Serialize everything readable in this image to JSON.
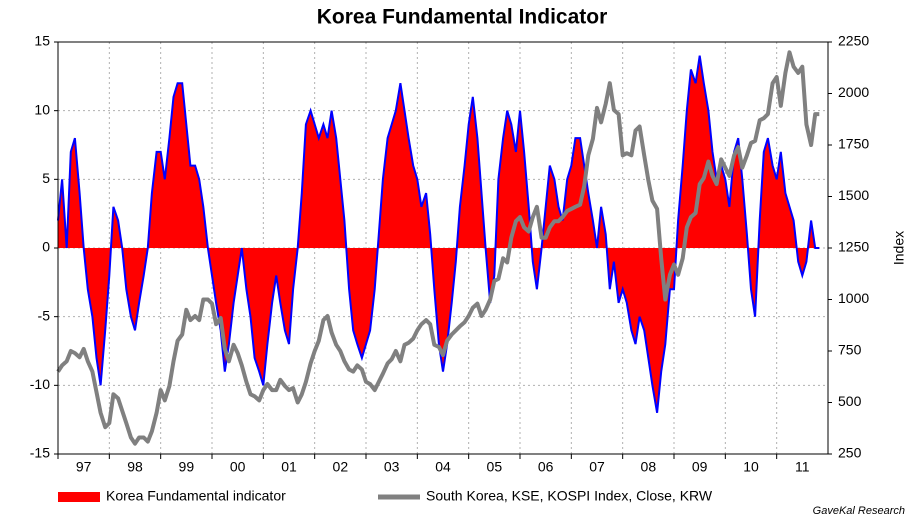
{
  "chart_data": {
    "type": "line",
    "title": "Korea Fundamental Indicator",
    "y2_label": "Index",
    "source": "GaveKal Research",
    "x": [
      1997,
      1997.08,
      1997.17,
      1997.25,
      1997.33,
      1997.42,
      1997.5,
      1997.58,
      1997.67,
      1997.75,
      1997.83,
      1997.92,
      1998,
      1998.08,
      1998.17,
      1998.25,
      1998.33,
      1998.42,
      1998.5,
      1998.58,
      1998.67,
      1998.75,
      1998.83,
      1998.92,
      1999,
      1999.08,
      1999.17,
      1999.25,
      1999.33,
      1999.42,
      1999.5,
      1999.58,
      1999.67,
      1999.75,
      1999.83,
      1999.92,
      2000,
      2000.08,
      2000.17,
      2000.25,
      2000.33,
      2000.42,
      2000.5,
      2000.58,
      2000.67,
      2000.75,
      2000.83,
      2000.92,
      2001,
      2001.08,
      2001.17,
      2001.25,
      2001.33,
      2001.42,
      2001.5,
      2001.58,
      2001.67,
      2001.75,
      2001.83,
      2001.92,
      2002,
      2002.08,
      2002.17,
      2002.25,
      2002.33,
      2002.42,
      2002.5,
      2002.58,
      2002.67,
      2002.75,
      2002.83,
      2002.92,
      2003,
      2003.08,
      2003.17,
      2003.25,
      2003.33,
      2003.42,
      2003.5,
      2003.58,
      2003.67,
      2003.75,
      2003.83,
      2003.92,
      2004,
      2004.08,
      2004.17,
      2004.25,
      2004.33,
      2004.42,
      2004.5,
      2004.58,
      2004.67,
      2004.75,
      2004.83,
      2004.92,
      2005,
      2005.08,
      2005.17,
      2005.25,
      2005.33,
      2005.42,
      2005.5,
      2005.58,
      2005.67,
      2005.75,
      2005.83,
      2005.92,
      2006,
      2006.08,
      2006.17,
      2006.25,
      2006.33,
      2006.42,
      2006.5,
      2006.58,
      2006.67,
      2006.75,
      2006.83,
      2006.92,
      2007,
      2007.08,
      2007.17,
      2007.25,
      2007.33,
      2007.42,
      2007.5,
      2007.58,
      2007.67,
      2007.75,
      2007.83,
      2007.92,
      2008,
      2008.08,
      2008.17,
      2008.25,
      2008.33,
      2008.42,
      2008.5,
      2008.58,
      2008.67,
      2008.75,
      2008.83,
      2008.92,
      2009,
      2009.08,
      2009.17,
      2009.25,
      2009.33,
      2009.42,
      2009.5,
      2009.58,
      2009.67,
      2009.75,
      2009.83,
      2009.92,
      2010,
      2010.08,
      2010.17,
      2010.25,
      2010.33,
      2010.42,
      2010.5,
      2010.58,
      2010.67,
      2010.75,
      2010.83,
      2010.92,
      2011,
      2011.08,
      2011.17,
      2011.25,
      2011.33,
      2011.42,
      2011.5,
      2011.58,
      2011.67,
      2011.75,
      2011.83
    ],
    "series": [
      {
        "name": "Korea Fundamental indicator",
        "color": "#ff0000",
        "line_color": "#0000ff",
        "axis": "y",
        "values": [
          2,
          5,
          0,
          7,
          8,
          4,
          0,
          -3,
          -5,
          -8,
          -10,
          -6,
          -2,
          3,
          2,
          0,
          -3,
          -5,
          -6,
          -4,
          -2,
          0,
          4,
          7,
          7,
          5,
          8,
          11,
          12,
          12,
          9,
          6,
          6,
          5,
          3,
          0,
          -2,
          -4,
          -6,
          -9,
          -7,
          -4,
          -2,
          0,
          -3,
          -5,
          -8,
          -9,
          -10,
          -7,
          -4,
          -2,
          -4,
          -6,
          -7,
          -3,
          0,
          4,
          9,
          10,
          9,
          8,
          9,
          8,
          10,
          8,
          5,
          2,
          -3,
          -6,
          -7,
          -8,
          -7,
          -6,
          -3,
          1,
          5,
          8,
          9,
          10,
          12,
          10,
          8,
          6,
          5,
          3,
          4,
          1,
          -3,
          -7,
          -9,
          -7,
          -4,
          -1,
          3,
          6,
          9,
          11,
          8,
          4,
          0,
          -4,
          -2,
          5,
          8,
          10,
          9,
          7,
          10,
          7,
          3,
          -1,
          -3,
          0,
          3,
          6,
          5,
          3,
          2,
          5,
          6,
          8,
          8,
          6,
          4,
          2,
          0,
          3,
          1,
          -3,
          -1,
          -4,
          -3,
          -4,
          -6,
          -7,
          -5,
          -6,
          -8,
          -10,
          -12,
          -9,
          -7,
          -3,
          -3,
          2,
          6,
          10,
          13,
          12,
          14,
          12,
          10,
          7,
          5,
          6,
          5,
          3,
          7,
          8,
          5,
          1,
          -3,
          -5,
          2,
          7,
          8,
          6,
          5,
          7,
          4,
          3,
          2,
          -1,
          -2,
          -1,
          2,
          0,
          0
        ]
      },
      {
        "name": "South Korea, KSE, KOSPI Index, Close, KRW",
        "color": "#808080",
        "axis": "y2",
        "values": [
          650,
          680,
          700,
          750,
          740,
          720,
          760,
          700,
          650,
          550,
          450,
          380,
          400,
          540,
          520,
          460,
          400,
          330,
          300,
          330,
          330,
          310,
          360,
          450,
          560,
          510,
          580,
          700,
          800,
          830,
          950,
          900,
          920,
          900,
          1000,
          1000,
          980,
          880,
          910,
          760,
          700,
          780,
          740,
          680,
          600,
          540,
          530,
          510,
          560,
          590,
          560,
          560,
          610,
          580,
          560,
          570,
          500,
          540,
          600,
          690,
          750,
          800,
          900,
          920,
          840,
          780,
          750,
          700,
          660,
          650,
          680,
          660,
          600,
          590,
          560,
          600,
          640,
          690,
          710,
          750,
          700,
          780,
          790,
          810,
          850,
          880,
          900,
          880,
          780,
          770,
          730,
          800,
          830,
          850,
          870,
          890,
          920,
          960,
          980,
          920,
          950,
          1000,
          1090,
          1100,
          1200,
          1180,
          1300,
          1380,
          1400,
          1350,
          1330,
          1400,
          1450,
          1300,
          1300,
          1350,
          1380,
          1380,
          1400,
          1430,
          1440,
          1450,
          1460,
          1550,
          1700,
          1780,
          1930,
          1860,
          1950,
          2050,
          1920,
          1900,
          1700,
          1710,
          1700,
          1820,
          1840,
          1700,
          1580,
          1480,
          1440,
          1200,
          1000,
          1120,
          1170,
          1120,
          1200,
          1350,
          1400,
          1420,
          1560,
          1590,
          1670,
          1600,
          1560,
          1680,
          1640,
          1600,
          1700,
          1740,
          1640,
          1700,
          1760,
          1770,
          1870,
          1880,
          1900,
          2050,
          2080,
          1940,
          2100,
          2200,
          2130,
          2100,
          2130,
          1850,
          1750,
          1900,
          1900
        ]
      }
    ],
    "xlim": [
      1997,
      2012
    ],
    "xticks": [
      {
        "value": 1997,
        "label": "97"
      },
      {
        "value": 1998,
        "label": "98"
      },
      {
        "value": 1999,
        "label": "99"
      },
      {
        "value": 2000,
        "label": "00"
      },
      {
        "value": 2001,
        "label": "01"
      },
      {
        "value": 2002,
        "label": "02"
      },
      {
        "value": 2003,
        "label": "03"
      },
      {
        "value": 2004,
        "label": "04"
      },
      {
        "value": 2005,
        "label": "05"
      },
      {
        "value": 2006,
        "label": "06"
      },
      {
        "value": 2007,
        "label": "07"
      },
      {
        "value": 2008,
        "label": "08"
      },
      {
        "value": 2009,
        "label": "09"
      },
      {
        "value": 2010,
        "label": "10"
      },
      {
        "value": 2011,
        "label": "11"
      }
    ],
    "ylim": [
      -15,
      15
    ],
    "yticks": [
      -15,
      -10,
      -5,
      0,
      5,
      10,
      15
    ],
    "y2lim": [
      250,
      2250
    ],
    "y2ticks": [
      250,
      500,
      750,
      1000,
      1250,
      1500,
      1750,
      2000,
      2250
    ],
    "grid": true
  }
}
